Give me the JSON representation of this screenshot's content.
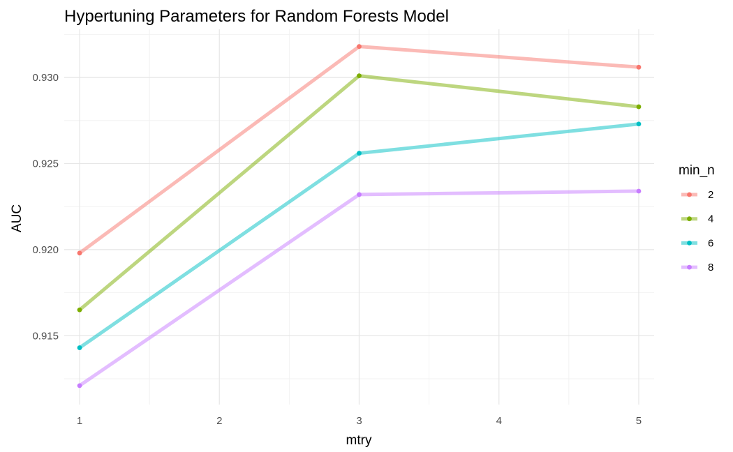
{
  "chart_data": {
    "type": "line",
    "title": "Hypertuning Parameters for Random Forests Model",
    "xlabel": "mtry",
    "ylabel": "AUC",
    "x": [
      1,
      3,
      5
    ],
    "xticks": [
      1,
      2,
      3,
      4,
      5
    ],
    "xlim": [
      0.89,
      5.11
    ],
    "yticks": [
      0.915,
      0.92,
      0.925,
      0.93
    ],
    "ytick_labels": [
      "0.915",
      "0.920",
      "0.925",
      "0.930"
    ],
    "ylim": [
      0.911,
      0.9328
    ],
    "grid": true,
    "legend": {
      "title": "min_n",
      "position": "right"
    },
    "series": [
      {
        "name": "2",
        "color": "#F8766D",
        "values": [
          0.9198,
          0.9318,
          0.9306
        ]
      },
      {
        "name": "4",
        "color": "#7CAE00",
        "values": [
          0.9165,
          0.9301,
          0.9283
        ]
      },
      {
        "name": "6",
        "color": "#00BFC4",
        "values": [
          0.9143,
          0.9256,
          0.9273
        ]
      },
      {
        "name": "8",
        "color": "#C77CFF",
        "values": [
          0.9121,
          0.9232,
          0.9234
        ]
      }
    ]
  }
}
